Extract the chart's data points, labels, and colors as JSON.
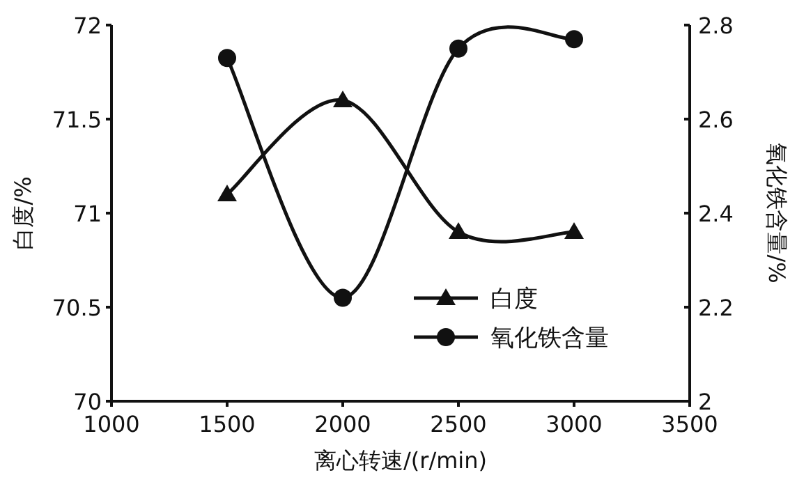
{
  "chart_data": {
    "type": "line",
    "xlabel": "离心转速/(r/min)",
    "ylabel": "白度/%",
    "y2label": "氧化铁含量/%",
    "x": [
      1500,
      2000,
      2500,
      3000
    ],
    "series": [
      {
        "name": "白度",
        "color": "#111111",
        "marker": "triangle",
        "values": [
          71.1,
          71.6,
          70.9,
          70.9
        ]
      },
      {
        "name": "氧化铁含量",
        "color": "#111111",
        "marker": "circle",
        "axis": "y2",
        "values": [
          2.73,
          2.22,
          2.75,
          2.77
        ]
      }
    ],
    "xlim": [
      1000,
      3500
    ],
    "xticks": [
      1000,
      1500,
      2000,
      2500,
      3000,
      3500
    ],
    "ylim": [
      70,
      72
    ],
    "yticks": [
      70,
      70.5,
      71,
      71.5,
      72
    ],
    "y2lim": [
      2,
      2.8
    ],
    "y2ticks": [
      2,
      2.2,
      2.4,
      2.6,
      2.8
    ],
    "legend": "bottom right",
    "grid": false
  }
}
